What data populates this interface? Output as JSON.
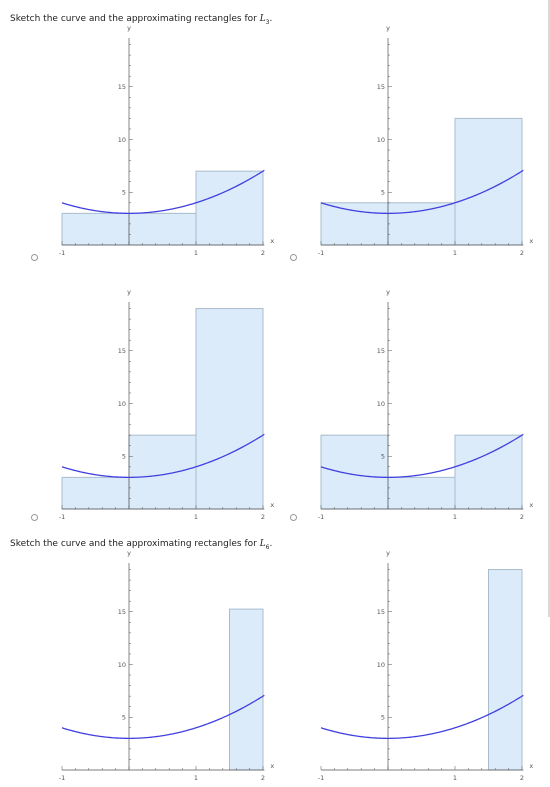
{
  "questions": [
    {
      "prefix": "Sketch the curve and the approximating rectangles for ",
      "symbol": "L",
      "sub": "3",
      "suffix": "."
    },
    {
      "prefix": "Sketch the curve and the approximating rectangles for ",
      "symbol": "L",
      "sub": "6",
      "suffix": "."
    }
  ],
  "axes": {
    "x_label": "x",
    "y_label": "y",
    "x_ticks": [
      "-1",
      "1",
      "2"
    ],
    "y_ticks": [
      "5",
      "10",
      "15"
    ]
  },
  "colors": {
    "curve": "#4040e0",
    "rect_fill": "#dcebfa",
    "rect_stroke": "#a9bccc",
    "axis": "#555555"
  },
  "chart_data": [
    {
      "type": "area",
      "function": "y = x^2 + 3",
      "xlim": [
        -1,
        2
      ],
      "ylim": [
        0,
        19
      ],
      "rectangles": [
        {
          "x0": -1,
          "x1": 0,
          "h": 3
        },
        {
          "x0": 0,
          "x1": 1,
          "h": 3
        },
        {
          "x0": 1,
          "x1": 2,
          "h": 7
        }
      ]
    },
    {
      "type": "area",
      "function": "y = x^2 + 3",
      "xlim": [
        -1,
        2
      ],
      "ylim": [
        0,
        19
      ],
      "rectangles": [
        {
          "x0": -1,
          "x1": 0,
          "h": 4
        },
        {
          "x0": 0,
          "x1": 1,
          "h": 4
        },
        {
          "x0": 1,
          "x1": 2,
          "h": 12
        }
      ]
    },
    {
      "type": "area",
      "function": "y = x^2 + 3",
      "xlim": [
        -1,
        2
      ],
      "ylim": [
        0,
        19
      ],
      "rectangles": [
        {
          "x0": -1,
          "x1": 0,
          "h": 3
        },
        {
          "x0": 0,
          "x1": 1,
          "h": 7
        },
        {
          "x0": 1,
          "x1": 2,
          "h": 19
        }
      ]
    },
    {
      "type": "area",
      "function": "y = x^2 + 3",
      "xlim": [
        -1,
        2
      ],
      "ylim": [
        0,
        19
      ],
      "rectangles": [
        {
          "x0": -1,
          "x1": 0,
          "h": 7
        },
        {
          "x0": 0,
          "x1": 1,
          "h": 3
        },
        {
          "x0": 1,
          "x1": 2,
          "h": 7
        }
      ]
    },
    {
      "type": "area",
      "function": "y = x^2 + 3",
      "xlim": [
        -1,
        2
      ],
      "ylim": [
        0,
        19
      ],
      "rectangles": [
        {
          "x0": 1.5,
          "x1": 2,
          "h": 15.25
        }
      ]
    },
    {
      "type": "area",
      "function": "y = x^2 + 3",
      "xlim": [
        -1,
        2
      ],
      "ylim": [
        0,
        19
      ],
      "rectangles": [
        {
          "x0": 1.5,
          "x1": 2,
          "h": 19
        }
      ]
    }
  ]
}
